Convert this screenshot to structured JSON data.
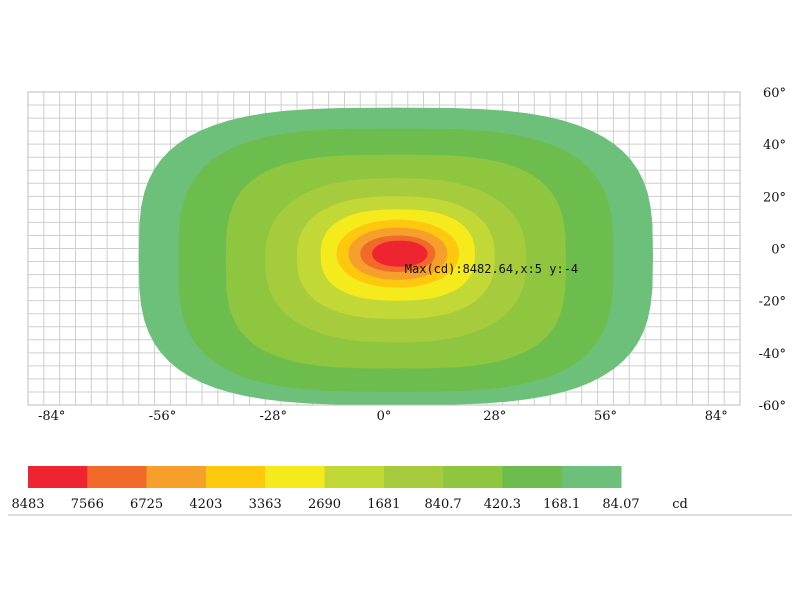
{
  "chart_data": {
    "type": "heatmap",
    "title": "",
    "xlim": [
      -90,
      90
    ],
    "ylim": [
      -60,
      60
    ],
    "x_ticks": [
      {
        "value": -84,
        "label": "-84°"
      },
      {
        "value": -56,
        "label": "-56°"
      },
      {
        "value": -28,
        "label": "-28°"
      },
      {
        "value": 0,
        "label": "0°"
      },
      {
        "value": 28,
        "label": "28°"
      },
      {
        "value": 56,
        "label": "56°"
      },
      {
        "value": 84,
        "label": "84°"
      }
    ],
    "y_ticks": [
      {
        "value": 60,
        "label": "60°"
      },
      {
        "value": 40,
        "label": "40°"
      },
      {
        "value": 20,
        "label": "20°"
      },
      {
        "value": 0,
        "label": "0°"
      },
      {
        "value": -20,
        "label": "-20°"
      },
      {
        "value": -40,
        "label": "-40°"
      },
      {
        "value": -60,
        "label": "-60°"
      }
    ],
    "grid": true,
    "max_point": {
      "x": 5,
      "y": -4,
      "value": 8482.64
    },
    "annotation": "Max(cd):8482.64,x:5 y:-4",
    "legend_unit": "cd",
    "legend_labels": [
      "8483",
      "7566",
      "6725",
      "4203",
      "3363",
      "2690",
      "1681",
      "840.7",
      "420.3",
      "168.1",
      "84.07"
    ],
    "contours": [
      {
        "level": 84.07,
        "color": "#6cc07a",
        "x_extent": [
          -62,
          68
        ],
        "y_extent": [
          -60,
          54
        ]
      },
      {
        "level": 168.1,
        "color": "#6cbd4e",
        "x_extent": [
          -52,
          58
        ],
        "y_extent": [
          -55,
          46
        ]
      },
      {
        "level": 420.3,
        "color": "#8ec640",
        "x_extent": [
          -40,
          46
        ],
        "y_extent": [
          -46,
          36
        ]
      },
      {
        "level": 840.7,
        "color": "#a6cc3e",
        "x_extent": [
          -30,
          36
        ],
        "y_extent": [
          -36,
          27
        ]
      },
      {
        "level": 1681,
        "color": "#c2d836",
        "x_extent": [
          -22,
          28
        ],
        "y_extent": [
          -27,
          20
        ]
      },
      {
        "level": 2690,
        "color": "#f4ea1c",
        "x_extent": [
          -16,
          23
        ],
        "y_extent": [
          -20,
          15
        ]
      },
      {
        "level": 3363,
        "color": "#fec80e",
        "x_extent": [
          -12,
          19
        ],
        "y_extent": [
          -15,
          11
        ]
      },
      {
        "level": 4203,
        "color": "#f6a02b",
        "x_extent": [
          -9,
          16
        ],
        "y_extent": [
          -12,
          8
        ]
      },
      {
        "level": 6725,
        "color": "#f26a2a",
        "x_extent": [
          -6,
          13
        ],
        "y_extent": [
          -9,
          5
        ]
      },
      {
        "level": 7566,
        "color": "#ee2530",
        "x_extent": [
          -3,
          11
        ],
        "y_extent": [
          -7,
          3
        ]
      }
    ],
    "legend_colors": [
      "#ee2530",
      "#f26a2a",
      "#f6a02b",
      "#fec80e",
      "#f4ea1c",
      "#c2d836",
      "#a6cc3e",
      "#8ec640",
      "#6cbd4e",
      "#6cc07a"
    ]
  }
}
